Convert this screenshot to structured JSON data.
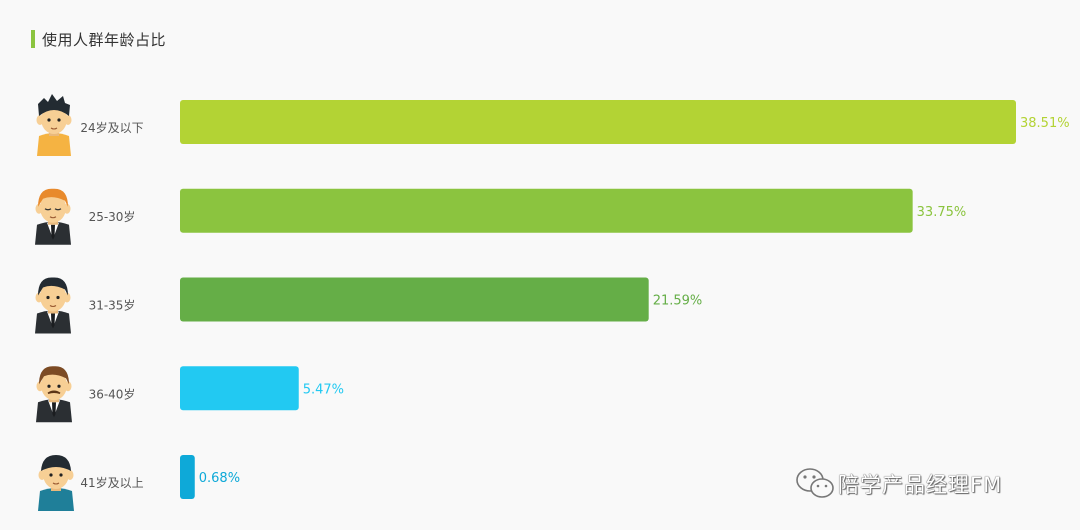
{
  "title": "使用人群年龄占比",
  "colors": {
    "accent": "#8bc43f",
    "bars": [
      "#b3d334",
      "#8bc43f",
      "#65ae47",
      "#22c9f2",
      "#0ea9d8"
    ],
    "skin": "#f7cf95",
    "hair_dark": "#232b32",
    "hair_orange": "#e88a2c",
    "hair_brown": "#7c4b24"
  },
  "chart_data": {
    "type": "bar",
    "orientation": "horizontal",
    "categories": [
      "24岁及以下",
      "25-30岁",
      "31-35岁",
      "36-40岁",
      "41岁及以上"
    ],
    "values": [
      38.51,
      33.75,
      21.59,
      5.47,
      0.68
    ],
    "value_labels": [
      "38.51%",
      "33.75%",
      "21.59%",
      "5.47%",
      "0.68%"
    ],
    "xlim": [
      0,
      38.51
    ],
    "grid": false,
    "legend": "none"
  },
  "avatars": [
    "boy-avatar-icon",
    "orange-hair-man-icon",
    "suit-man-icon",
    "mustache-man-icon",
    "old-man-icon"
  ],
  "watermark": "陪学产品经理FM"
}
